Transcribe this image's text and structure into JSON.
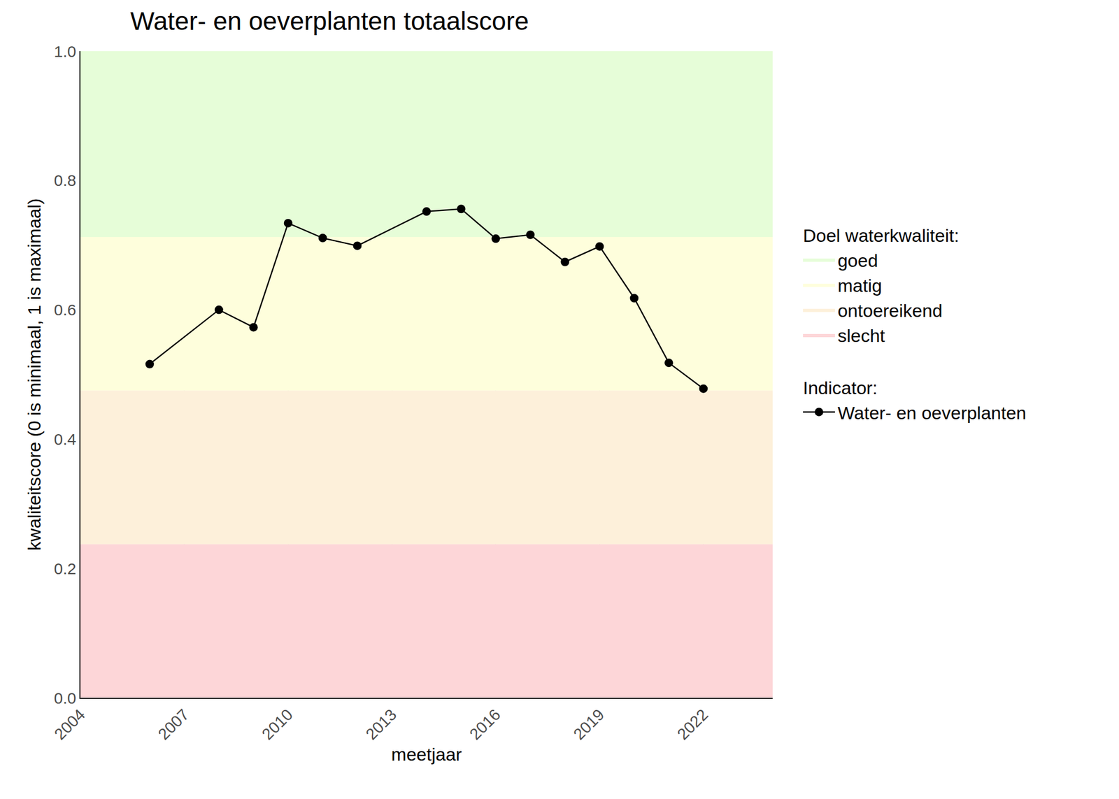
{
  "chart_data": {
    "type": "line",
    "title": "Water- en oeverplanten totaalscore",
    "x_label": "meetjaar",
    "y_label": "kwaliteitscore (0 is minimaal, 1 is maximaal)",
    "x": [
      2006,
      2008,
      2009,
      2010,
      2011,
      2012,
      2014,
      2015,
      2016,
      2017,
      2018,
      2019,
      2020,
      2021,
      2022
    ],
    "series": [
      {
        "name": "Water- en oeverplanten",
        "color": "#000000",
        "marker": "circle",
        "line_style": "solid",
        "values": [
          0.516,
          0.6,
          0.573,
          0.734,
          0.711,
          0.699,
          0.752,
          0.756,
          0.71,
          0.716,
          0.674,
          0.698,
          0.618,
          0.518,
          0.478
        ]
      }
    ],
    "series_legend_title": "Indicator:",
    "bands_legend_title": "Doel waterkwaliteit:",
    "bands": [
      {
        "name": "goed",
        "from": 0.7125,
        "to": 1.0,
        "color": "#e6fdd8"
      },
      {
        "name": "matig",
        "from": 0.475,
        "to": 0.7125,
        "color": "#fefedc"
      },
      {
        "name": "ontoereikend",
        "from": 0.2375,
        "to": 0.475,
        "color": "#fdf0da"
      },
      {
        "name": "slecht",
        "from": 0.0,
        "to": 0.2375,
        "color": "#fdd6d8"
      }
    ],
    "xlim": [
      2004,
      2024
    ],
    "xticks": [
      2004,
      2007,
      2010,
      2013,
      2016,
      2019,
      2022
    ],
    "ylim": [
      0,
      1
    ],
    "yticks": [
      {
        "value": 0,
        "label": "0.0"
      },
      {
        "value": 0.2,
        "label": "0.2"
      },
      {
        "value": 0.4,
        "label": "0.4"
      },
      {
        "value": 0.6,
        "label": "0.6"
      },
      {
        "value": 0.8,
        "label": "0.8"
      },
      {
        "value": 1,
        "label": "1.0"
      }
    ],
    "grid": true,
    "legend": "right"
  }
}
